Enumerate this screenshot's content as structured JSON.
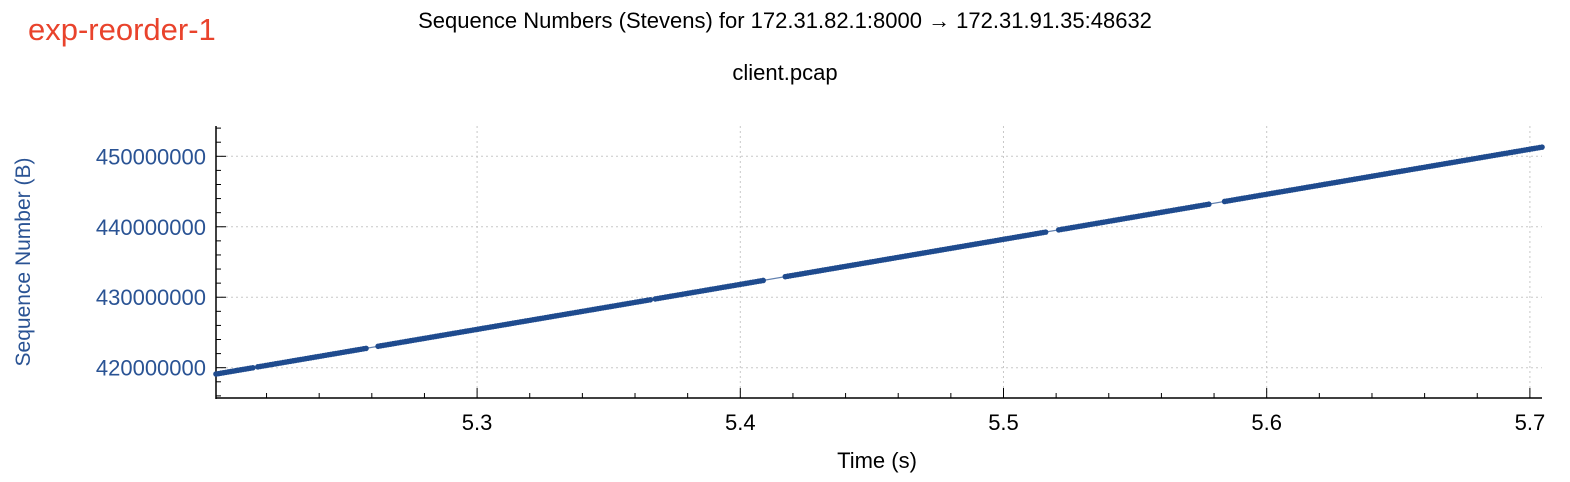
{
  "experiment_label": "exp-reorder-1",
  "chart_data": {
    "type": "scatter",
    "title": "Sequence Numbers (Stevens) for 172.31.82.1:8000 → 172.31.91.35:48632",
    "subtitle": "client.pcap",
    "xlabel": "Time (s)",
    "ylabel": "Sequence Number (B)",
    "xlim": [
      5.2008,
      5.7046
    ],
    "ylim": [
      415700000,
      454300000
    ],
    "x_ticks": [
      5.3,
      5.4,
      5.5,
      5.6,
      5.7
    ],
    "x_tick_labels": [
      "5.3",
      "5.4",
      "5.5",
      "5.6",
      "5.7"
    ],
    "y_ticks": [
      420000000,
      430000000,
      440000000,
      450000000
    ],
    "y_tick_labels": [
      "420000000",
      "430000000",
      "440000000",
      "450000000"
    ],
    "grid": true,
    "series_color": "#1f4b8e",
    "segments": [
      {
        "t0": 5.2008,
        "s0": 419100000,
        "t1": 5.2148,
        "s1": 419990000
      },
      {
        "t0": 5.2167,
        "s0": 420120000,
        "t1": 5.2578,
        "s1": 422740000
      },
      {
        "t0": 5.2624,
        "s0": 423040000,
        "t1": 5.3658,
        "s1": 429640000
      },
      {
        "t0": 5.3677,
        "s0": 429760000,
        "t1": 5.4087,
        "s1": 432380000
      },
      {
        "t0": 5.4171,
        "s0": 432920000,
        "t1": 5.516,
        "s1": 439240000
      },
      {
        "t0": 5.521,
        "s0": 439560000,
        "t1": 5.578,
        "s1": 443200000
      },
      {
        "t0": 5.584,
        "s0": 443590000,
        "t1": 5.7046,
        "s1": 451300000
      }
    ]
  }
}
